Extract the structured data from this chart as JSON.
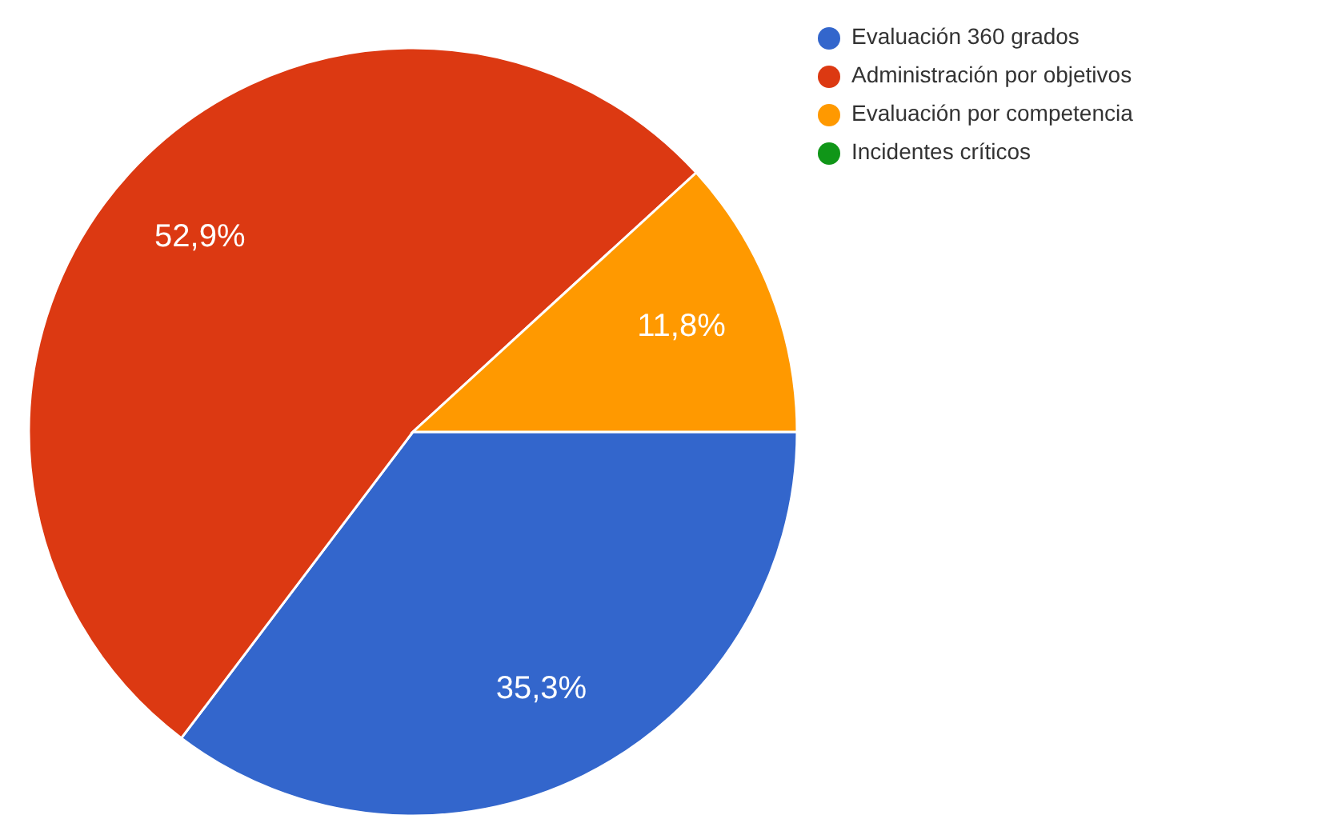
{
  "chart_data": {
    "type": "pie",
    "categories": [
      "Evaluación 360 grados",
      "Administración por objetivos",
      "Evaluación por competencia",
      "Incidentes críticos"
    ],
    "values": [
      35.3,
      52.9,
      11.8,
      0
    ],
    "colors": [
      "#3366cc",
      "#dc3912",
      "#ff9900",
      "#109618"
    ],
    "value_labels": [
      "35,3%",
      "52,9%",
      "11,8%",
      null
    ],
    "legend": "top right"
  }
}
